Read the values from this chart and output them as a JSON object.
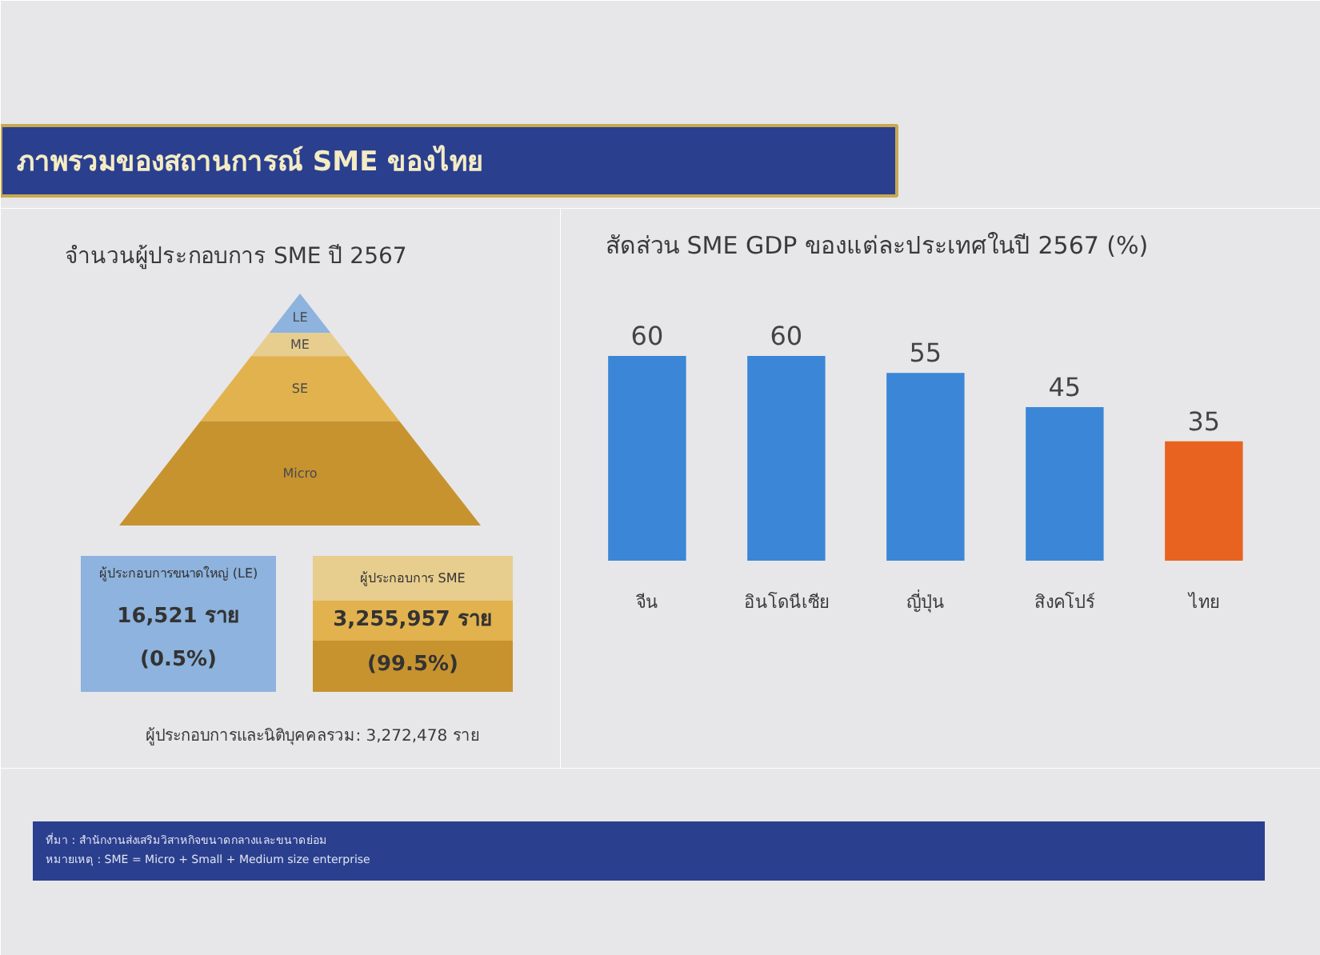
{
  "chart_data": [
    {
      "type": "other",
      "title": "ภาพรวมของสถานการณ์ SME ของไทย",
      "subtitle": "จำนวนผู้ประกอบการ SME ปี 2567",
      "categories": [
        "LE",
        "ME",
        "SE",
        "Micro"
      ],
      "colors": [
        "#8db3de",
        "#e7cd8e",
        "#e2b24e",
        "#c7932f"
      ],
      "annotations": [
        "ผู้ประกอบการขนาดใหญ่ (LE)",
        "16,521 ราย",
        "(0.5%)",
        "ผู้ประกอบการ SME",
        "3,255,957 ราย",
        "(99.5%)",
        "ผู้ประกอบการและนิติบุคคลรวม: 3,272,478 ราย"
      ]
    },
    {
      "type": "bar",
      "title": "สัดส่วน SME GDP ของแต่ละประเทศในปี 2567 (%)",
      "categories": [
        "จีน",
        "อินโดนีเซีย",
        "ญี่ปุ่น",
        "สิงคโปร์",
        "ไทย"
      ],
      "values": [
        60,
        60,
        55,
        45,
        35
      ],
      "colors": [
        "#3b86d6",
        "#3b86d6",
        "#3b86d6",
        "#3b86d6",
        "#e8631f"
      ],
      "data_labels": true,
      "tick_labels": "x",
      "annotations": [
        "ที่มา : สำนักงานส่งเสริมวิสาหกิจขนาดกลางและขนาดย่อม",
        "หมายเหตุ : SME = Micro + Small + Medium size enterprise"
      ]
    }
  ]
}
